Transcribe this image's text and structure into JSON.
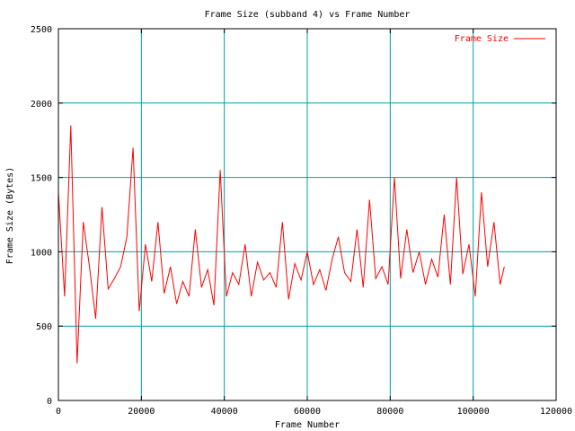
{
  "chart_data": {
    "type": "line",
    "title": "Frame Size (subband 4) vs Frame Number",
    "xlabel": "Frame Number",
    "ylabel": "Frame Size (Bytes)",
    "xlim": [
      0,
      120000
    ],
    "ylim": [
      0,
      2500
    ],
    "x_ticks": [
      0,
      20000,
      40000,
      60000,
      80000,
      100000,
      120000
    ],
    "x_tick_labels": [
      "0",
      "20000",
      "40000",
      "60000",
      "80000",
      "100000",
      "120000"
    ],
    "y_ticks": [
      0,
      500,
      1000,
      1500,
      2000,
      2500
    ],
    "y_tick_labels": [
      "0",
      "500",
      "1000",
      "1500",
      "2000",
      "2500"
    ],
    "grid": true,
    "legend_position": "top-right",
    "series": [
      {
        "name": "Frame Size",
        "color": "#ff0000",
        "x": [
          0,
          1500,
          3000,
          4500,
          6000,
          7500,
          9000,
          10500,
          12000,
          13500,
          15000,
          16500,
          18000,
          19500,
          21000,
          22500,
          24000,
          25500,
          27000,
          28500,
          30000,
          31500,
          33000,
          34500,
          36000,
          37500,
          39000,
          40500,
          42000,
          43500,
          45000,
          46500,
          48000,
          49500,
          51000,
          52500,
          54000,
          55500,
          57000,
          58500,
          60000,
          61500,
          63000,
          64500,
          66000,
          67500,
          69000,
          70500,
          72000,
          73500,
          75000,
          76500,
          78000,
          79500,
          81000,
          82500,
          84000,
          85500,
          87000,
          88500,
          90000,
          91500,
          93000,
          94500,
          96000,
          97500,
          99000,
          100500,
          102000,
          103500,
          105000,
          106500,
          107500
        ],
        "values": [
          1400,
          700,
          1850,
          250,
          1200,
          900,
          550,
          1300,
          750,
          820,
          900,
          1100,
          1700,
          600,
          1050,
          800,
          1200,
          720,
          900,
          650,
          800,
          700,
          1150,
          760,
          880,
          640,
          1550,
          700,
          860,
          780,
          1050,
          700,
          930,
          810,
          860,
          760,
          1200,
          680,
          920,
          810,
          1000,
          780,
          880,
          740,
          950,
          1100,
          860,
          800,
          1150,
          760,
          1350,
          820,
          900,
          780,
          1500,
          820,
          1150,
          860,
          1000,
          780,
          950,
          830,
          1250,
          780,
          1500,
          850,
          1050,
          700,
          1400,
          900,
          1200,
          780,
          900
        ]
      }
    ]
  }
}
